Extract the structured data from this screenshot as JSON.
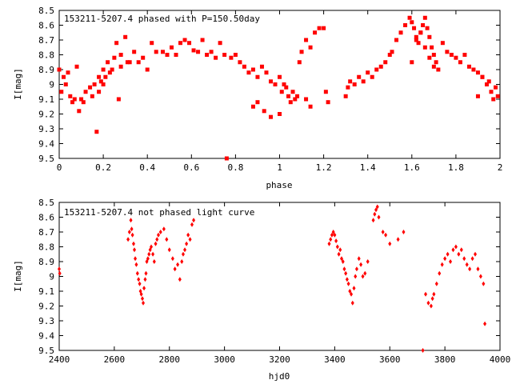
{
  "chart_data": [
    {
      "type": "scatter",
      "title": "153211-5207.4 phased with P=150.50day",
      "xlabel": "phase",
      "ylabel": "I[mag]",
      "xlim": [
        0,
        2
      ],
      "ylim": [
        8.5,
        9.5
      ],
      "y_inverted": true,
      "xticks": [
        "0",
        "0.2",
        "0.4",
        "0.6",
        "0.8",
        "1",
        "1.2",
        "1.4",
        "1.6",
        "1.8",
        "2"
      ],
      "yticks": [
        "8.5",
        "8.6",
        "8.7",
        "8.8",
        "8.9",
        "9",
        "9.1",
        "9.2",
        "9.3",
        "9.4",
        "9.5"
      ],
      "marker": "square",
      "color": "#ff0000",
      "grid": false,
      "x": [
        0.0,
        0.01,
        0.02,
        0.03,
        0.04,
        0.05,
        0.06,
        0.07,
        0.08,
        0.09,
        0.1,
        0.11,
        0.12,
        0.14,
        0.15,
        0.16,
        0.17,
        0.18,
        0.18,
        0.19,
        0.2,
        0.2,
        0.21,
        0.22,
        0.23,
        0.24,
        0.25,
        0.26,
        0.27,
        0.28,
        0.28,
        0.3,
        0.31,
        0.32,
        0.34,
        0.36,
        0.38,
        0.4,
        0.42,
        0.44,
        0.47,
        0.49,
        0.51,
        0.53,
        0.55,
        0.57,
        0.59,
        0.61,
        0.63,
        0.65,
        0.67,
        0.69,
        0.71,
        0.73,
        0.75,
        0.76,
        0.78,
        0.8,
        0.82,
        0.84,
        0.86,
        0.88,
        0.9,
        0.92,
        0.94,
        0.96,
        0.98,
        1.0,
        1.01,
        1.02,
        1.03,
        1.04,
        1.05,
        1.06,
        1.07,
        1.08,
        1.09,
        1.1,
        1.12,
        1.14,
        1.16,
        1.18,
        1.2,
        1.21,
        1.22,
        1.12,
        1.14,
        1.0,
        0.96,
        0.93,
        0.9,
        0.88,
        1.3,
        1.31,
        1.32,
        1.34,
        1.36,
        1.38,
        1.4,
        1.42,
        1.44,
        1.46,
        1.48,
        1.5,
        1.51,
        1.53,
        1.55,
        1.57,
        1.59,
        1.6,
        1.61,
        1.62,
        1.63,
        1.64,
        1.65,
        1.66,
        1.67,
        1.68,
        1.69,
        1.7,
        1.71,
        1.72,
        1.66,
        1.68,
        1.7,
        1.74,
        1.76,
        1.78,
        1.8,
        1.82,
        1.84,
        1.86,
        1.88,
        1.9,
        1.92,
        1.94,
        1.95,
        1.96,
        1.97,
        1.98,
        1.99,
        1.92,
        1.9,
        1.6,
        1.62,
        1.64
      ],
      "y": [
        8.9,
        9.05,
        8.95,
        9.0,
        8.92,
        9.08,
        9.12,
        9.1,
        8.88,
        9.18,
        9.1,
        9.12,
        9.05,
        9.02,
        9.08,
        9.0,
        9.32,
        8.95,
        9.05,
        8.98,
        8.9,
        9.0,
        8.95,
        8.85,
        8.92,
        8.9,
        8.82,
        8.72,
        9.1,
        8.88,
        8.8,
        8.68,
        8.85,
        8.85,
        8.78,
        8.85,
        8.82,
        8.9,
        8.72,
        8.78,
        8.78,
        8.8,
        8.75,
        8.8,
        8.72,
        8.7,
        8.72,
        8.77,
        8.78,
        8.7,
        8.8,
        8.78,
        8.82,
        8.72,
        8.8,
        9.5,
        8.82,
        8.8,
        8.85,
        8.88,
        8.92,
        8.9,
        8.95,
        8.88,
        8.92,
        8.98,
        9.0,
        8.95,
        9.05,
        9.0,
        9.02,
        9.08,
        9.12,
        9.05,
        9.1,
        9.08,
        8.85,
        8.78,
        8.7,
        8.75,
        8.65,
        8.62,
        8.62,
        9.05,
        9.12,
        9.1,
        9.15,
        9.2,
        9.22,
        9.18,
        9.12,
        9.15,
        9.08,
        9.02,
        8.98,
        9.0,
        8.95,
        8.98,
        8.92,
        8.95,
        8.9,
        8.88,
        8.85,
        8.8,
        8.78,
        8.7,
        8.65,
        8.6,
        8.55,
        8.58,
        8.62,
        8.68,
        8.72,
        8.65,
        8.6,
        8.55,
        8.62,
        8.68,
        8.75,
        8.8,
        8.85,
        8.9,
        8.75,
        8.82,
        8.88,
        8.72,
        8.78,
        8.8,
        8.82,
        8.85,
        8.8,
        8.88,
        8.9,
        8.92,
        8.95,
        9.0,
        8.98,
        9.05,
        9.1,
        9.02,
        9.08,
        8.95,
        9.08,
        8.85,
        8.7,
        8.65
      ]
    },
    {
      "type": "scatter",
      "title": "153211-5207.4 not phased light curve",
      "xlabel": "hjd0",
      "ylabel": "I[mag]",
      "xlim": [
        2400,
        4000
      ],
      "ylim": [
        8.5,
        9.5
      ],
      "y_inverted": true,
      "xticks": [
        "2400",
        "2600",
        "2800",
        "3000",
        "3200",
        "3400",
        "3600",
        "3800",
        "4000"
      ],
      "yticks": [
        "8.5",
        "8.6",
        "8.7",
        "8.8",
        "8.9",
        "9",
        "9.1",
        "9.2",
        "9.3",
        "9.4",
        "9.5"
      ],
      "marker": "diamond",
      "color": "#ff0000",
      "grid": false,
      "x": [
        2400,
        2402,
        2650,
        2655,
        2660,
        2663,
        2666,
        2670,
        2673,
        2676,
        2680,
        2684,
        2688,
        2692,
        2695,
        2698,
        2702,
        2705,
        2708,
        2712,
        2715,
        2718,
        2722,
        2726,
        2730,
        2734,
        2740,
        2745,
        2750,
        2755,
        2760,
        2768,
        2780,
        2790,
        2800,
        2812,
        2820,
        2830,
        2838,
        2845,
        2850,
        2856,
        2862,
        2868,
        2875,
        2882,
        2888,
        3380,
        3385,
        3390,
        3395,
        3400,
        3405,
        3410,
        3415,
        3420,
        3425,
        3430,
        3435,
        3440,
        3445,
        3450,
        3455,
        3460,
        3465,
        3470,
        3475,
        3480,
        3488,
        3495,
        3502,
        3510,
        3520,
        3540,
        3545,
        3550,
        3555,
        3560,
        3575,
        3585,
        3600,
        3630,
        3650,
        3720,
        3730,
        3740,
        3750,
        3755,
        3760,
        3770,
        3780,
        3790,
        3800,
        3810,
        3820,
        3830,
        3840,
        3850,
        3860,
        3870,
        3880,
        3890,
        3900,
        3910,
        3920,
        3930,
        3940,
        3945
      ],
      "y": [
        8.95,
        8.98,
        8.75,
        8.7,
        8.62,
        8.68,
        8.72,
        8.78,
        8.82,
        8.88,
        8.92,
        8.98,
        9.02,
        9.05,
        9.1,
        9.12,
        9.15,
        9.18,
        9.08,
        9.02,
        8.98,
        8.9,
        8.88,
        8.85,
        8.82,
        8.8,
        8.85,
        8.9,
        8.78,
        8.75,
        8.72,
        8.7,
        8.68,
        8.75,
        8.82,
        8.88,
        8.95,
        8.92,
        9.02,
        8.9,
        8.85,
        8.82,
        8.78,
        8.72,
        8.75,
        8.65,
        8.62,
        8.78,
        8.75,
        8.72,
        8.7,
        8.72,
        8.76,
        8.8,
        8.85,
        8.82,
        8.88,
        8.9,
        8.95,
        8.98,
        9.02,
        9.05,
        9.1,
        9.12,
        9.18,
        9.08,
        9.0,
        8.95,
        8.88,
        8.92,
        9.0,
        8.98,
        8.9,
        8.62,
        8.58,
        8.55,
        8.53,
        8.6,
        8.7,
        8.72,
        8.78,
        8.75,
        8.7,
        9.5,
        9.12,
        9.18,
        9.2,
        9.15,
        9.12,
        9.05,
        8.98,
        8.92,
        8.88,
        8.85,
        8.9,
        8.82,
        8.8,
        8.85,
        8.82,
        8.88,
        8.92,
        8.95,
        8.88,
        8.85,
        8.95,
        9.0,
        9.05,
        9.32
      ]
    }
  ]
}
